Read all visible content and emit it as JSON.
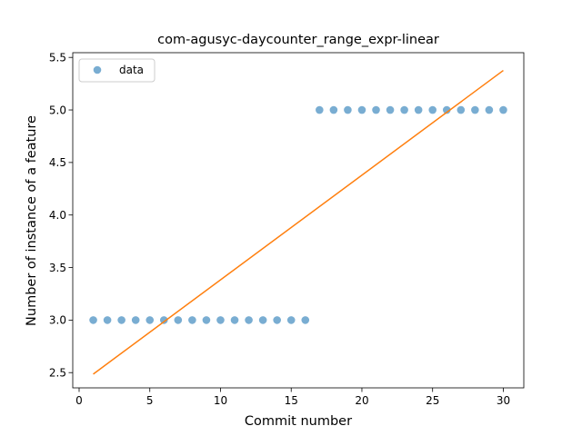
{
  "chart_data": {
    "type": "scatter",
    "title": "com-agusyc-daycounter_range_expr-linear",
    "xlabel": "Commit number",
    "ylabel": "Number of instance of a feature",
    "xlim": [
      -0.45,
      31.45
    ],
    "ylim": [
      2.355,
      5.545
    ],
    "xticks": [
      0,
      5,
      10,
      15,
      20,
      25,
      30
    ],
    "yticks": [
      2.5,
      3.0,
      3.5,
      4.0,
      4.5,
      5.0,
      5.5
    ],
    "xtick_labels": [
      "0",
      "5",
      "10",
      "15",
      "20",
      "25",
      "30"
    ],
    "ytick_labels": [
      "2.5",
      "3.0",
      "3.5",
      "4.0",
      "4.5",
      "5.0",
      "5.5"
    ],
    "grid": false,
    "legend": {
      "position": "top-left",
      "entries": [
        "data"
      ]
    },
    "series": [
      {
        "name": "data",
        "kind": "scatter",
        "color": "#1f77b4",
        "x": [
          1,
          2,
          3,
          4,
          5,
          6,
          7,
          8,
          9,
          10,
          11,
          12,
          13,
          14,
          15,
          16,
          17,
          18,
          19,
          20,
          21,
          22,
          23,
          24,
          25,
          26,
          27,
          28,
          29,
          30
        ],
        "y": [
          3,
          3,
          3,
          3,
          3,
          3,
          3,
          3,
          3,
          3,
          3,
          3,
          3,
          3,
          3,
          3,
          5,
          5,
          5,
          5,
          5,
          5,
          5,
          5,
          5,
          5,
          5,
          5,
          5,
          5
        ]
      },
      {
        "kind": "line",
        "color": "#ff7f0e",
        "x": [
          1,
          30
        ],
        "y": [
          2.486,
          5.376
        ]
      }
    ]
  }
}
